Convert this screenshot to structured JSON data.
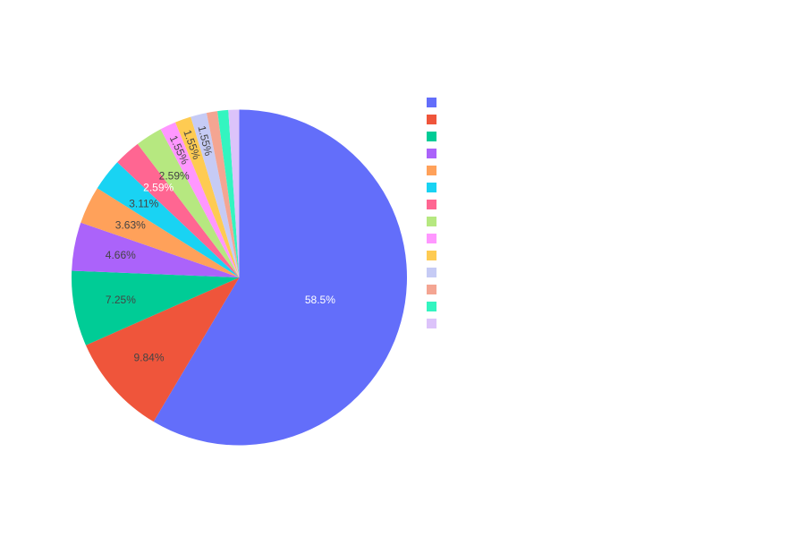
{
  "chart_data": {
    "type": "pie",
    "title": "",
    "values": [
      58.5,
      9.84,
      7.25,
      4.66,
      3.63,
      3.11,
      2.59,
      2.59,
      1.55,
      1.55,
      1.55,
      1.04,
      1.04,
      1.04
    ],
    "labels": [
      "58.5%",
      "9.84%",
      "7.25%",
      "4.66%",
      "3.63%",
      "3.11%",
      "2.59%",
      "2.59%",
      "1.55%",
      "1.55%",
      "1.55%",
      "",
      "",
      ""
    ],
    "colors": [
      "#636efa",
      "#EF553B",
      "#00cc96",
      "#ab63fa",
      "#FFA15A",
      "#19d3f3",
      "#FF6692",
      "#B6E880",
      "#FF97FF",
      "#FECB52",
      "#c6cbf5",
      "#f4a592",
      "#33f5c0",
      "#dcc3fa"
    ],
    "label_colors": [
      "#ffffff",
      "#444444",
      "#444444",
      "#444444",
      "#444444",
      "#444444",
      "#ffffff",
      "#444444",
      "#444444",
      "#444444",
      "#444444",
      "#444444",
      "#444444",
      "#444444"
    ],
    "direction": "clockwise",
    "start_angle": "top",
    "legend": {
      "position": "right",
      "entries": [
        "",
        "",
        "",
        "",
        "",
        "",
        "",
        "",
        "",
        "",
        "",
        "",
        "",
        ""
      ]
    }
  }
}
